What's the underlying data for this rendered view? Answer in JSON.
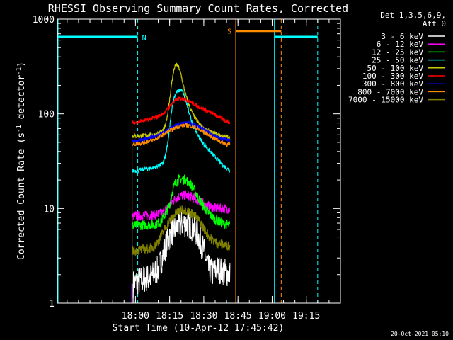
{
  "chart_data": {
    "type": "line",
    "title": "RHESSI Observing Summary Count Rates, Corrected",
    "xlabel": "Start Time (10-Apr-12 17:45:42)",
    "ylabel_main": "Corrected Count Rate (s",
    "ylabel_sup1": "-1",
    "ylabel_mid": " detector",
    "ylabel_sup2": "-1",
    "ylabel_end": ")",
    "yscale": "log",
    "ylim": [
      1,
      1000
    ],
    "xlim_minutes": [
      1045.7,
      1170
    ],
    "x_ticks": [
      {
        "label": "18:00",
        "minute": 1080
      },
      {
        "label": "18:15",
        "minute": 1095
      },
      {
        "label": "18:30",
        "minute": 1110
      },
      {
        "label": "18:45",
        "minute": 1125
      },
      {
        "label": "19:00",
        "minute": 1140
      },
      {
        "label": "19:15",
        "minute": 1155
      }
    ],
    "y_ticks": [
      {
        "label": "1000",
        "value": 1000
      },
      {
        "label": "100",
        "value": 100
      },
      {
        "label": "10",
        "value": 10
      },
      {
        "label": "1",
        "value": 1
      }
    ],
    "legend_header": [
      "Det 1,3,5,6,9,",
      "Att 0"
    ],
    "legend": [
      {
        "label": "3 - 6 keV",
        "color": "#ffffff"
      },
      {
        "label": "6 - 12 keV",
        "color": "#ff00ff"
      },
      {
        "label": "12 - 25 keV",
        "color": "#00ff00"
      },
      {
        "label": "25 - 50 keV",
        "color": "#00ffff"
      },
      {
        "label": "50 - 100 keV",
        "color": "#cccc00"
      },
      {
        "label": "100 - 300 keV",
        "color": "#ff0000"
      },
      {
        "label": "300 - 800 keV",
        "color": "#0000ff"
      },
      {
        "label": "800 - 7000 keV",
        "color": "#ff8c00"
      },
      {
        "label": "7000 - 15000 keV",
        "color": "#808000"
      }
    ],
    "series": [
      {
        "color": "#000000",
        "minutes": [
          1079,
          1081,
          1084,
          1087,
          1090,
          1092,
          1094,
          1096,
          1098,
          1100,
          1102,
          1104,
          1106,
          1108,
          1110,
          1112,
          1114,
          1116,
          1118,
          1120,
          1121.5
        ],
        "values": [
          1.6,
          1.7,
          1.8,
          1.9,
          2.3,
          3.1,
          4.6,
          5.6,
          6.3,
          6.8,
          7.0,
          6.7,
          6.0,
          4.9,
          3.6,
          2.3,
          2.1,
          2.3,
          2.2,
          2.1,
          2.0
        ]
      },
      {
        "color": "#ff00ff",
        "minutes": [
          1078.5,
          1080,
          1084,
          1088,
          1092,
          1094,
          1096,
          1098,
          1100,
          1102,
          1104,
          1106,
          1108,
          1110,
          1112,
          1114,
          1116,
          1118,
          1120,
          1121.5
        ],
        "values": [
          8.2,
          8.3,
          8.4,
          8.5,
          9.0,
          10.2,
          11.6,
          13.0,
          13.6,
          13.8,
          13.4,
          12.8,
          12.0,
          11.2,
          10.6,
          10.2,
          10.0,
          10.0,
          10.0,
          9.9
        ]
      },
      {
        "color": "#00ff00",
        "minutes": [
          1078.5,
          1080,
          1084,
          1088,
          1091,
          1093,
          1095,
          1096,
          1097,
          1098,
          1100,
          1102,
          1104,
          1106,
          1108,
          1110,
          1112,
          1114,
          1116,
          1118,
          1120,
          1121.5
        ],
        "values": [
          6.6,
          6.6,
          6.7,
          6.7,
          7.2,
          8.6,
          11.0,
          14.5,
          17.5,
          19.5,
          20.5,
          20.2,
          18.5,
          15.5,
          12.5,
          10.5,
          9.0,
          8.0,
          7.4,
          7.0,
          6.8,
          6.6
        ]
      },
      {
        "color": "#00ffff",
        "minutes": [
          1078.5,
          1080,
          1084,
          1088,
          1090,
          1092,
          1093,
          1094,
          1095,
          1096,
          1097,
          1098,
          1100,
          1101,
          1102,
          1104,
          1106,
          1108,
          1110,
          1112,
          1114,
          1116,
          1118,
          1120,
          1121.5
        ],
        "values": [
          25,
          25,
          26,
          27,
          28,
          30,
          35,
          45,
          70,
          115,
          150,
          170,
          180,
          165,
          140,
          95,
          70,
          56,
          48,
          42,
          37,
          33,
          29,
          27,
          25
        ]
      },
      {
        "color": "#cccc00",
        "minutes": [
          1078.5,
          1080,
          1084,
          1088,
          1090,
          1092,
          1093,
          1094,
          1095,
          1096,
          1097,
          1098,
          1099,
          1100,
          1101,
          1102,
          1103,
          1104,
          1106,
          1108,
          1110,
          1112,
          1114,
          1116,
          1118,
          1120,
          1121.5
        ],
        "values": [
          58,
          58,
          59,
          60,
          62,
          66,
          75,
          95,
          140,
          220,
          300,
          335,
          310,
          260,
          200,
          160,
          135,
          115,
          92,
          78,
          70,
          66,
          63,
          60,
          58,
          57,
          56
        ]
      },
      {
        "color": "#ff0000",
        "minutes": [
          1078.5,
          1080,
          1084,
          1088,
          1090,
          1092,
          1094,
          1096,
          1098,
          1100,
          1102,
          1104,
          1106,
          1108,
          1110,
          1112,
          1114,
          1116,
          1118,
          1120,
          1121.5
        ],
        "values": [
          80,
          81,
          85,
          90,
          94,
          100,
          112,
          128,
          142,
          145,
          142,
          135,
          126,
          118,
          112,
          106,
          100,
          94,
          88,
          84,
          80
        ]
      },
      {
        "color": "#0000ff",
        "minutes": [
          1078.5,
          1080,
          1084,
          1088,
          1090,
          1092,
          1094,
          1096,
          1098,
          1100,
          1102,
          1104,
          1106,
          1108,
          1110,
          1112,
          1114,
          1116,
          1118,
          1120,
          1121.5
        ],
        "values": [
          52,
          52,
          54,
          58,
          60,
          63,
          67,
          71,
          75,
          78,
          80,
          79,
          76,
          72,
          68,
          64,
          60,
          57,
          55,
          53,
          52
        ]
      },
      {
        "color": "#ff8c00",
        "minutes": [
          1078.5,
          1080,
          1084,
          1088,
          1090,
          1092,
          1094,
          1096,
          1098,
          1100,
          1102,
          1104,
          1106,
          1108,
          1110,
          1112,
          1114,
          1116,
          1118,
          1120,
          1121.5
        ],
        "values": [
          48,
          48,
          50,
          53,
          56,
          60,
          64,
          68,
          72,
          75,
          76,
          75,
          72,
          68,
          64,
          60,
          56,
          53,
          50,
          48,
          47
        ]
      },
      {
        "color": "#808000",
        "minutes": [
          1078.5,
          1080,
          1084,
          1088,
          1090,
          1092,
          1094,
          1096,
          1098,
          1100,
          1102,
          1104,
          1106,
          1108,
          1110,
          1112,
          1114,
          1116,
          1118,
          1120,
          1121.5
        ],
        "values": [
          3.6,
          3.6,
          3.7,
          3.9,
          4.5,
          5.5,
          6.8,
          8.0,
          9.0,
          9.8,
          9.7,
          9.2,
          8.4,
          7.4,
          6.2,
          5.2,
          4.6,
          4.3,
          4.2,
          4.1,
          4.0
        ]
      }
    ],
    "annotations": {
      "night_label": "N",
      "saa_label": "S",
      "night_color": "#00ffff",
      "saa_color": "#ff8c00",
      "night_bars": [
        {
          "start": 1045.7,
          "end": 1081
        },
        {
          "start": 1141,
          "end": 1160
        }
      ],
      "saa_bar": {
        "start": 1124,
        "end": 1144
      },
      "night_solid_lines": [
        1045.7,
        1141
      ],
      "night_dashed_lines": [
        1081,
        1160
      ],
      "saa_solid_lines": [
        1124
      ],
      "saa_dashed_lines": [
        1144
      ],
      "data_start_line": {
        "minute": 1078.5,
        "color": "#8800ff"
      },
      "bar_value": 650,
      "saa_bar_value": 750
    },
    "grid": false
  },
  "footer_date": "20-Oct-2021 05:10"
}
